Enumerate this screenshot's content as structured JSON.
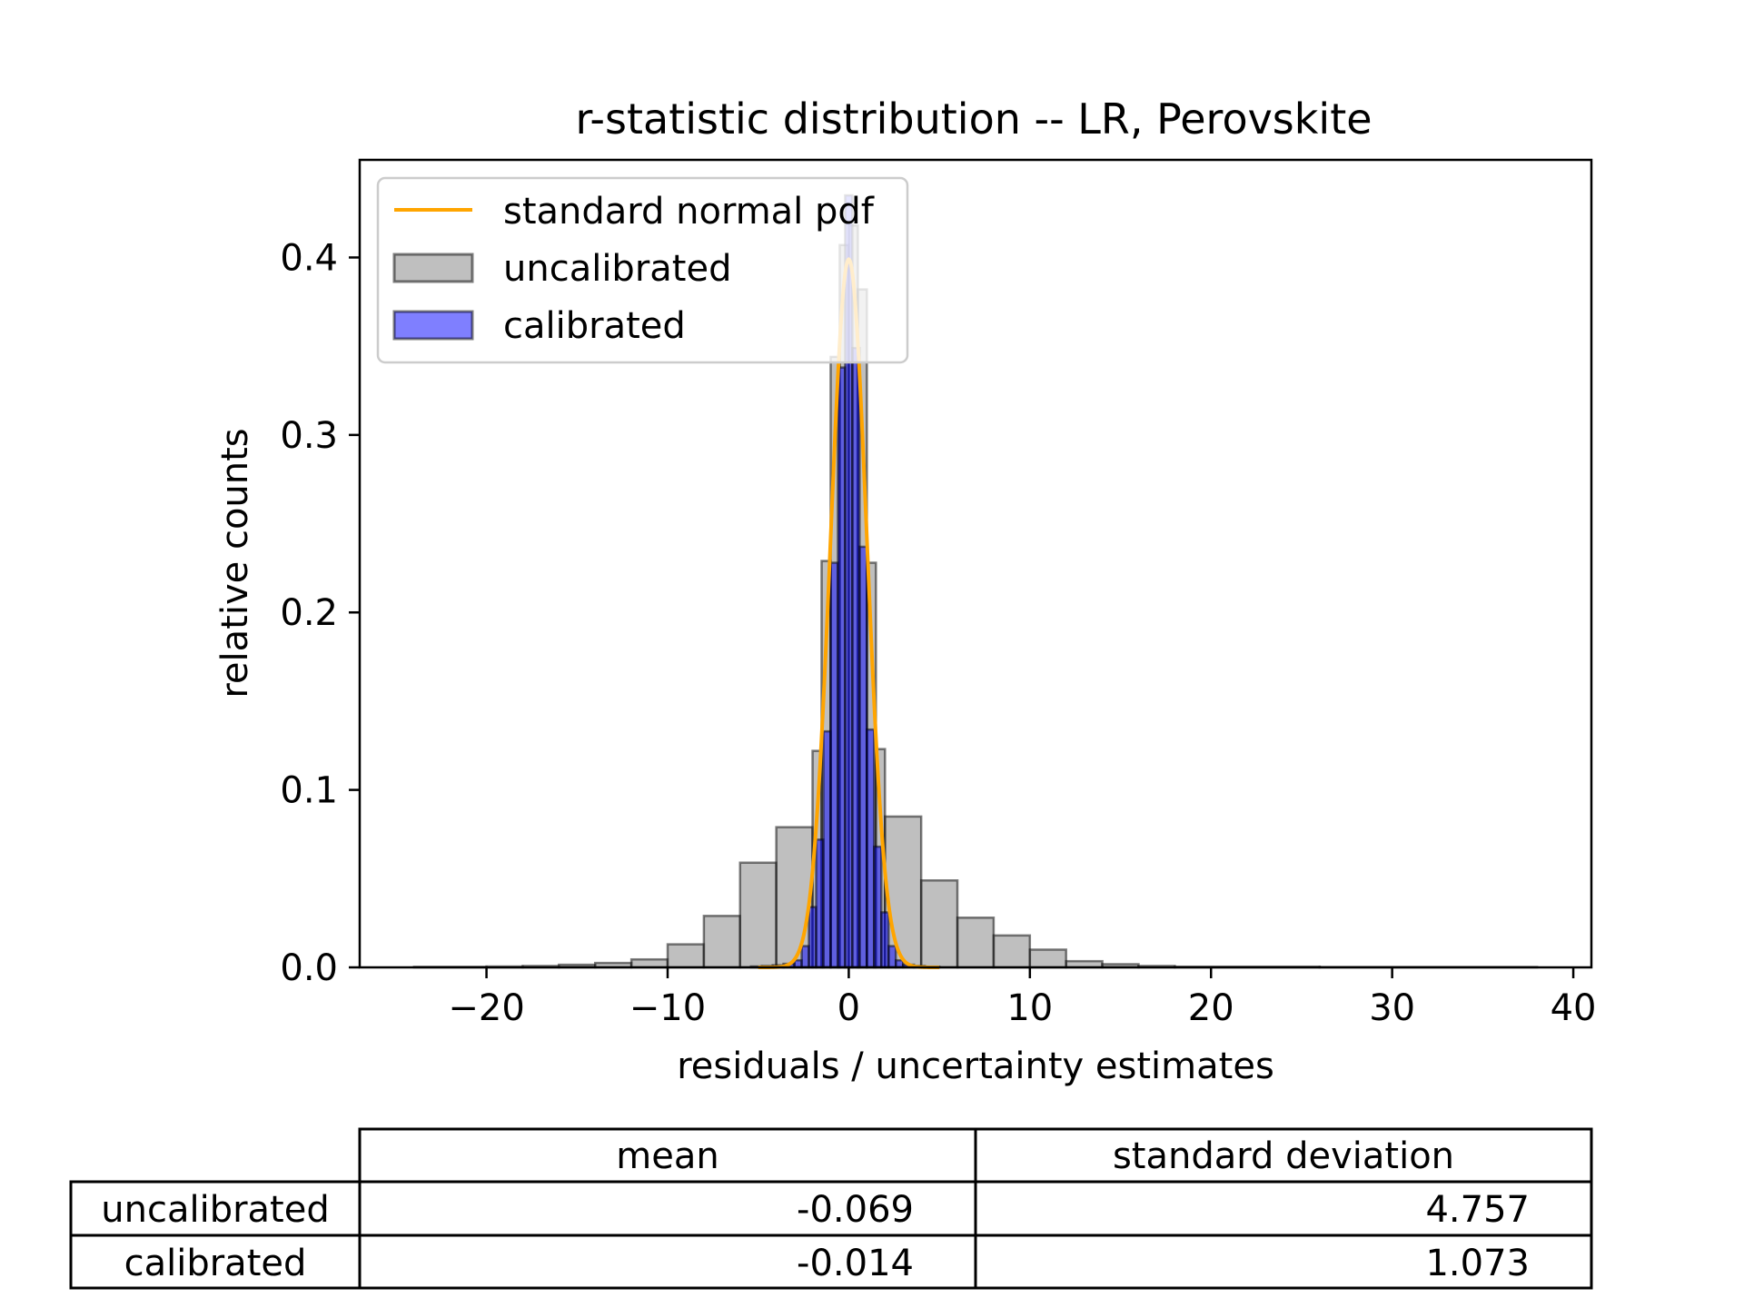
{
  "chart_data": {
    "type": "bar",
    "title": "r-statistic distribution -- LR, Perovskite",
    "xlabel": "residuals / uncertainty estimates",
    "ylabel": "relative counts",
    "xlim": [
      -27,
      41
    ],
    "ylim": [
      0,
      0.455
    ],
    "xticks": [
      -20,
      -10,
      0,
      10,
      20,
      30,
      40
    ],
    "xtick_labels": [
      "−20",
      "−10",
      "0",
      "10",
      "20",
      "30",
      "40"
    ],
    "yticks": [
      0.0,
      0.1,
      0.2,
      0.3,
      0.4
    ],
    "ytick_labels": [
      "0.0",
      "0.1",
      "0.2",
      "0.3",
      "0.4"
    ],
    "grid": false,
    "legend_position": "top-left",
    "series": [
      {
        "name": "uncalibrated",
        "kind": "histogram",
        "color": "#808080",
        "bins": [
          {
            "x0": -24.0,
            "x1": -20.0,
            "value": 0.0003
          },
          {
            "x0": -20.0,
            "x1": -18.0,
            "value": 0.0005
          },
          {
            "x0": -18.0,
            "x1": -16.0,
            "value": 0.0008
          },
          {
            "x0": -16.0,
            "x1": -14.0,
            "value": 0.0015
          },
          {
            "x0": -14.0,
            "x1": -12.0,
            "value": 0.0025
          },
          {
            "x0": -12.0,
            "x1": -10.0,
            "value": 0.0045
          },
          {
            "x0": -10.0,
            "x1": -8.0,
            "value": 0.013
          },
          {
            "x0": -8.0,
            "x1": -6.0,
            "value": 0.029
          },
          {
            "x0": -6.0,
            "x1": -4.0,
            "value": 0.059
          },
          {
            "x0": -4.0,
            "x1": -2.0,
            "value": 0.079
          },
          {
            "x0": -2.0,
            "x1": -1.5,
            "value": 0.122
          },
          {
            "x0": -1.5,
            "x1": -1.0,
            "value": 0.229
          },
          {
            "x0": -1.0,
            "x1": -0.5,
            "value": 0.344
          },
          {
            "x0": -0.5,
            "x1": 0.0,
            "value": 0.407
          },
          {
            "x0": 0.0,
            "x1": 0.5,
            "value": 0.418
          },
          {
            "x0": 0.5,
            "x1": 1.0,
            "value": 0.382
          },
          {
            "x0": 1.0,
            "x1": 1.5,
            "value": 0.228
          },
          {
            "x0": 1.5,
            "x1": 2.0,
            "value": 0.123
          },
          {
            "x0": 2.0,
            "x1": 4.0,
            "value": 0.085
          },
          {
            "x0": 4.0,
            "x1": 6.0,
            "value": 0.049
          },
          {
            "x0": 6.0,
            "x1": 8.0,
            "value": 0.028
          },
          {
            "x0": 8.0,
            "x1": 10.0,
            "value": 0.018
          },
          {
            "x0": 10.0,
            "x1": 12.0,
            "value": 0.01
          },
          {
            "x0": 12.0,
            "x1": 14.0,
            "value": 0.0035
          },
          {
            "x0": 14.0,
            "x1": 16.0,
            "value": 0.0018
          },
          {
            "x0": 16.0,
            "x1": 18.0,
            "value": 0.0008
          },
          {
            "x0": 18.0,
            "x1": 26.0,
            "value": 0.0004
          },
          {
            "x0": 26.0,
            "x1": 38.0,
            "value": 0.0002
          }
        ]
      },
      {
        "name": "calibrated",
        "kind": "histogram",
        "color": "#0000ff",
        "bins": [
          {
            "x0": -5.4,
            "x1": -4.8,
            "value": 0.0005
          },
          {
            "x0": -4.8,
            "x1": -4.2,
            "value": 0.0008
          },
          {
            "x0": -4.2,
            "x1": -3.6,
            "value": 0.0012
          },
          {
            "x0": -3.6,
            "x1": -3.0,
            "value": 0.002
          },
          {
            "x0": -3.0,
            "x1": -2.6,
            "value": 0.004
          },
          {
            "x0": -2.6,
            "x1": -2.2,
            "value": 0.012
          },
          {
            "x0": -2.2,
            "x1": -1.8,
            "value": 0.034
          },
          {
            "x0": -1.8,
            "x1": -1.4,
            "value": 0.072
          },
          {
            "x0": -1.4,
            "x1": -1.0,
            "value": 0.133
          },
          {
            "x0": -1.0,
            "x1": -0.6,
            "value": 0.228
          },
          {
            "x0": -0.6,
            "x1": -0.2,
            "value": 0.338
          },
          {
            "x0": -0.2,
            "x1": 0.2,
            "value": 0.435
          },
          {
            "x0": 0.2,
            "x1": 0.6,
            "value": 0.349
          },
          {
            "x0": 0.6,
            "x1": 1.0,
            "value": 0.237
          },
          {
            "x0": 1.0,
            "x1": 1.4,
            "value": 0.134
          },
          {
            "x0": 1.4,
            "x1": 1.8,
            "value": 0.068
          },
          {
            "x0": 1.8,
            "x1": 2.2,
            "value": 0.031
          },
          {
            "x0": 2.2,
            "x1": 2.6,
            "value": 0.012
          },
          {
            "x0": 2.6,
            "x1": 3.0,
            "value": 0.004
          },
          {
            "x0": 3.0,
            "x1": 3.6,
            "value": 0.0015
          },
          {
            "x0": 3.6,
            "x1": 4.2,
            "value": 0.0008
          },
          {
            "x0": 4.2,
            "x1": 5.0,
            "value": 0.0004
          }
        ]
      },
      {
        "name": "standard normal pdf",
        "kind": "line",
        "color": "#ffa500",
        "function": "standard_normal_pdf",
        "x_range": [
          -5,
          5
        ]
      }
    ]
  },
  "table": {
    "col_headers": [
      "mean",
      "standard deviation"
    ],
    "rows": [
      {
        "label": "uncalibrated",
        "mean": "-0.069",
        "std": "4.757"
      },
      {
        "label": "calibrated",
        "mean": "-0.014",
        "std": "1.073"
      }
    ]
  }
}
